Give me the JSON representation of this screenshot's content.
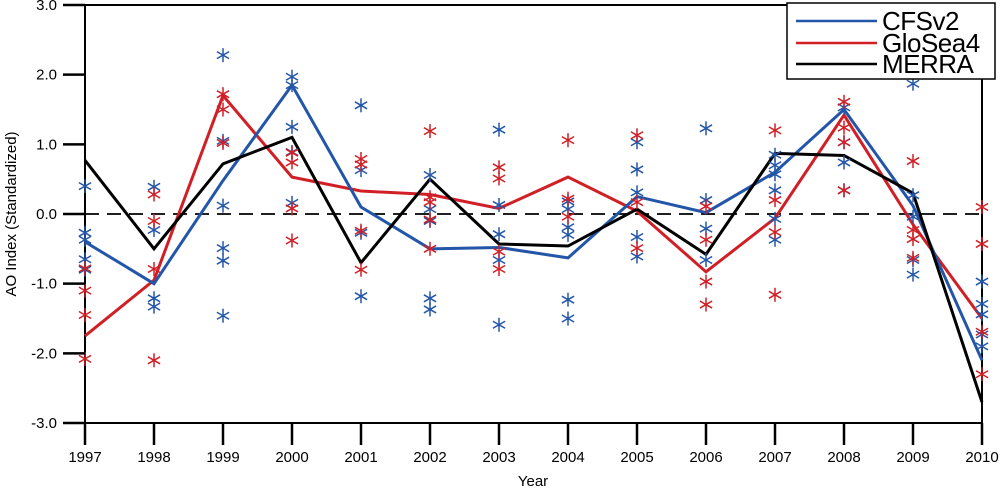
{
  "figure": {
    "xlabel": "Year",
    "ylabel": "AO Index (Standardized)"
  },
  "legend": {
    "position": "top-right",
    "entries": [
      {
        "label": "CFSv2",
        "color": "#2356a8"
      },
      {
        "label": "GloSea4",
        "color": "#d11f26"
      },
      {
        "label": "MERRA",
        "color": "#000000"
      }
    ]
  },
  "chart_data": {
    "type": "line",
    "title": "",
    "xlabel": "Year",
    "ylabel": "AO Index (Standardized)",
    "x": [
      1997,
      1998,
      1999,
      2000,
      2001,
      2002,
      2003,
      2004,
      2005,
      2006,
      2007,
      2008,
      2009,
      2010
    ],
    "xtick_labels": [
      "1997",
      "1998",
      "1999",
      "2000",
      "2001",
      "2002",
      "2003",
      "2004",
      "2005",
      "2006",
      "2007",
      "2008",
      "2009",
      "2010"
    ],
    "ylim": [
      -3.0,
      3.0
    ],
    "yticks": [
      3.0,
      2.0,
      1.0,
      0.0,
      -1.0,
      -2.0,
      -3.0
    ],
    "ytick_labels": [
      "3.0",
      "2.0",
      "1.0",
      "0.0",
      "-1.0",
      "-2.0",
      "-3.0"
    ],
    "grid": false,
    "zero_line": "dashed",
    "legend_position": "top-right",
    "series": [
      {
        "name": "CFSv2",
        "color": "#2356a8",
        "values": [
          -0.4,
          -1.0,
          0.48,
          1.85,
          0.1,
          -0.5,
          -0.48,
          -0.63,
          0.25,
          0.02,
          0.6,
          1.5,
          0.12,
          -2.1
        ]
      },
      {
        "name": "GloSea4",
        "color": "#d11f26",
        "values": [
          -1.75,
          -0.95,
          1.7,
          0.53,
          0.33,
          0.28,
          0.08,
          0.53,
          0.04,
          -0.83,
          -0.06,
          1.42,
          -0.15,
          -1.5
        ]
      },
      {
        "name": "MERRA",
        "color": "#000000",
        "values": [
          0.77,
          -0.5,
          0.72,
          1.1,
          -0.7,
          0.5,
          -0.43,
          -0.46,
          0.07,
          -0.58,
          0.87,
          0.84,
          0.3,
          -2.7
        ]
      }
    ],
    "ensemble_members": [
      {
        "name": "CFSv2 members",
        "marker": "asterisk",
        "color": "#2356a8",
        "values_by_year": [
          [
            0.4,
            -0.27,
            -0.37,
            -0.65,
            -0.8
          ],
          [
            0.39,
            -0.23,
            -1.21,
            -1.33
          ],
          [
            2.28,
            1.05,
            0.12,
            -0.49,
            -0.67,
            -1.46
          ],
          [
            1.97,
            1.85,
            1.25,
            0.89,
            0.16
          ],
          [
            1.56,
            0.63,
            -0.27,
            -1.18
          ],
          [
            0.56,
            0.07,
            -0.1,
            -1.21,
            -1.37
          ],
          [
            1.21,
            0.13,
            -0.29,
            -0.66,
            -1.59
          ],
          [
            0.18,
            0.07,
            -0.19,
            -0.3,
            -1.23,
            -1.5
          ],
          [
            1.03,
            0.64,
            0.31,
            -0.33,
            -0.61
          ],
          [
            1.23,
            0.2,
            -0.21,
            -0.66
          ],
          [
            0.85,
            0.7,
            0.57,
            0.34,
            -0.07,
            -0.37
          ],
          [
            1.53,
            1.03,
            0.74,
            0.34
          ],
          [
            1.87,
            0.27,
            -0.04,
            -0.66,
            -0.87
          ],
          [
            -0.97,
            -1.29,
            -1.44,
            -1.73,
            -1.9
          ]
        ]
      },
      {
        "name": "GloSea4 members",
        "marker": "asterisk",
        "color": "#d11f26",
        "values_by_year": [
          [
            -0.78,
            -1.1,
            -1.45,
            -2.08
          ],
          [
            0.28,
            -0.1,
            -0.79,
            -2.1
          ],
          [
            1.72,
            1.5,
            1.02
          ],
          [
            0.88,
            0.74,
            0.08,
            -0.38
          ],
          [
            0.79,
            0.71,
            -0.24,
            -0.8
          ],
          [
            1.19,
            0.24,
            0.17,
            -0.08,
            -0.5
          ],
          [
            0.67,
            0.51,
            -0.54,
            -0.79
          ],
          [
            1.06,
            0.22,
            -0.04
          ],
          [
            1.13,
            0.17,
            -0.49
          ],
          [
            0.11,
            -0.37,
            -0.97,
            -1.3
          ],
          [
            1.2,
            0.2,
            -0.26,
            -1.16
          ],
          [
            1.61,
            1.24,
            1.03,
            0.34
          ],
          [
            0.76,
            -0.23,
            -0.36,
            -0.63
          ],
          [
            0.1,
            -0.43,
            -1.69,
            -2.3
          ]
        ]
      }
    ]
  }
}
